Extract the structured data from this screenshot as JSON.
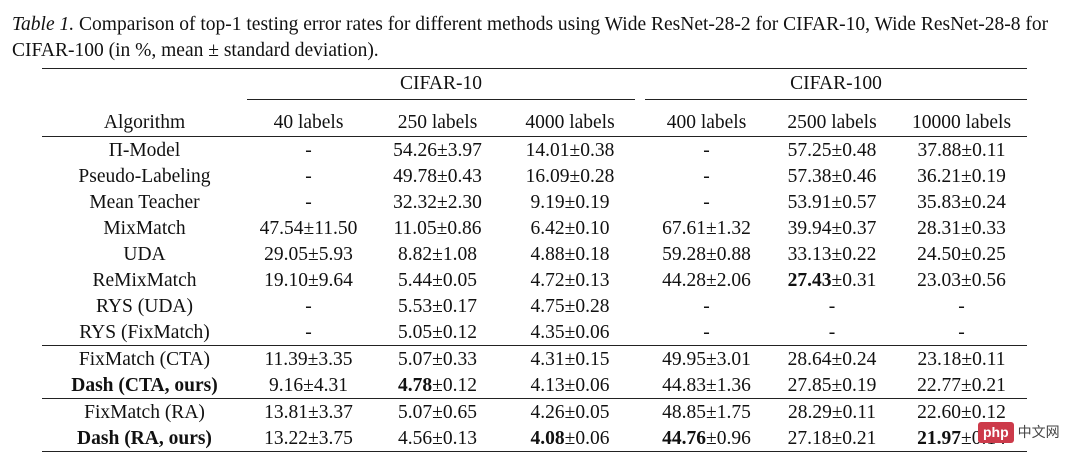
{
  "caption": {
    "label": "Table 1.",
    "text": " Comparison of top-1 testing error rates for different methods using Wide ResNet-28-2 for CIFAR-10, Wide ResNet-28-8 for CIFAR-100 (in %, mean ± standard deviation)."
  },
  "table": {
    "groups": [
      "CIFAR-10",
      "CIFAR-100"
    ],
    "headers": [
      "Algorithm",
      "40 labels",
      "250 labels",
      "4000 labels",
      "400 labels",
      "2500 labels",
      "10000 labels"
    ],
    "rows": [
      {
        "name": "Π-Model",
        "cells": [
          "-",
          "54.26±3.97",
          "14.01±0.38",
          "-",
          "57.25±0.48",
          "37.88±0.11"
        ]
      },
      {
        "name": "Pseudo-Labeling",
        "cells": [
          "-",
          "49.78±0.43",
          "16.09±0.28",
          "-",
          "57.38±0.46",
          "36.21±0.19"
        ]
      },
      {
        "name": "Mean Teacher",
        "cells": [
          "-",
          "32.32±2.30",
          "9.19±0.19",
          "-",
          "53.91±0.57",
          "35.83±0.24"
        ]
      },
      {
        "name": "MixMatch",
        "cells": [
          "47.54±11.50",
          "11.05±0.86",
          "6.42±0.10",
          "67.61±1.32",
          "39.94±0.37",
          "28.31±0.33"
        ]
      },
      {
        "name": "UDA",
        "cells": [
          "29.05±5.93",
          "8.82±1.08",
          "4.88±0.18",
          "59.28±0.88",
          "33.13±0.22",
          "24.50±0.25"
        ]
      },
      {
        "name": "ReMixMatch",
        "cells": [
          "19.10±9.64",
          "5.44±0.05",
          "4.72±0.13",
          "44.28±2.06",
          "27.43±0.31",
          "23.03±0.56"
        ]
      },
      {
        "name": "RYS (UDA)",
        "cells": [
          "-",
          "5.53±0.17",
          "4.75±0.28",
          "-",
          "-",
          "-"
        ]
      },
      {
        "name": "RYS (FixMatch)",
        "cells": [
          "-",
          "5.05±0.12",
          "4.35±0.06",
          "-",
          "-",
          "-"
        ]
      },
      {
        "name": "FixMatch (CTA)",
        "cells": [
          "11.39±3.35",
          "5.07±0.33",
          "4.31±0.15",
          "49.95±3.01",
          "28.64±0.24",
          "23.18±0.11"
        ]
      },
      {
        "name": "Dash (CTA, ours)",
        "cells": [
          "9.16±4.31",
          "4.78±0.12",
          "4.13±0.06",
          "44.83±1.36",
          "27.85±0.19",
          "22.77±0.21"
        ]
      },
      {
        "name": "FixMatch (RA)",
        "cells": [
          "13.81±3.37",
          "5.07±0.65",
          "4.26±0.05",
          "48.85±1.75",
          "28.29±0.11",
          "22.60±0.12"
        ]
      },
      {
        "name": "Dash (RA, ours)",
        "cells": [
          "13.22±3.75",
          "4.56±0.13",
          "4.08±0.06",
          "44.76±0.96",
          "27.18±0.21",
          "21.97±0.14"
        ]
      }
    ]
  },
  "watermark": {
    "badge": "php",
    "text": "中文网"
  }
}
